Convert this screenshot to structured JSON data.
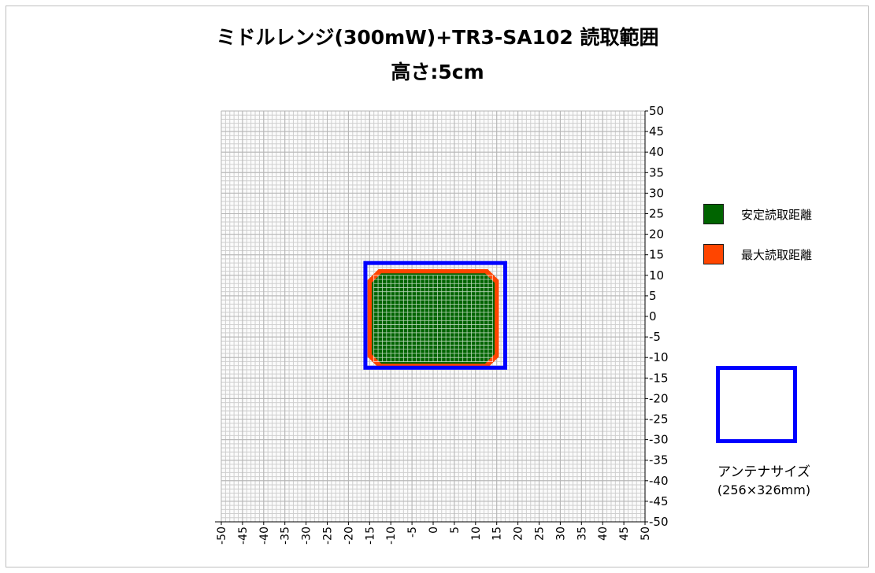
{
  "chart_data": {
    "type": "heatmap",
    "title": "ミドルレンジ(300mW)+TR3-SA102 読取範囲",
    "subtitle": "高さ:5cm",
    "xlim": [
      -50,
      50
    ],
    "ylim": [
      -50,
      50
    ],
    "x_ticks": [
      -50,
      -45,
      -40,
      -35,
      -30,
      -25,
      -20,
      -15,
      -10,
      -5,
      0,
      5,
      10,
      15,
      20,
      25,
      30,
      35,
      40,
      45,
      50
    ],
    "y_ticks": [
      50,
      45,
      40,
      35,
      30,
      25,
      20,
      15,
      10,
      5,
      0,
      -5,
      -10,
      -15,
      -20,
      -25,
      -30,
      -35,
      -40,
      -45,
      -50
    ],
    "grid": true,
    "legend_position": "right",
    "series": [
      {
        "name": "安定読取距離",
        "color": "#006400",
        "region": {
          "x": [
            -14.5,
            14.5
          ],
          "y": [
            -11.5,
            10.5
          ]
        }
      },
      {
        "name": "最大読取距離",
        "color": "#ff4500",
        "region": {
          "x": [
            -15.5,
            15.5
          ],
          "y": [
            -12.5,
            11.5
          ]
        }
      }
    ],
    "antenna_outline": {
      "color": "#0000ff",
      "x": [
        -16,
        17
      ],
      "y": [
        -12.5,
        13
      ]
    }
  },
  "legend": {
    "items": [
      {
        "label": "安定読取距離",
        "color": "#006400"
      },
      {
        "label": "最大読取距離",
        "color": "#ff4500"
      }
    ]
  },
  "antenna": {
    "label": "アンテナサイズ",
    "size": "(256×326mm)",
    "color": "#0000ff"
  }
}
